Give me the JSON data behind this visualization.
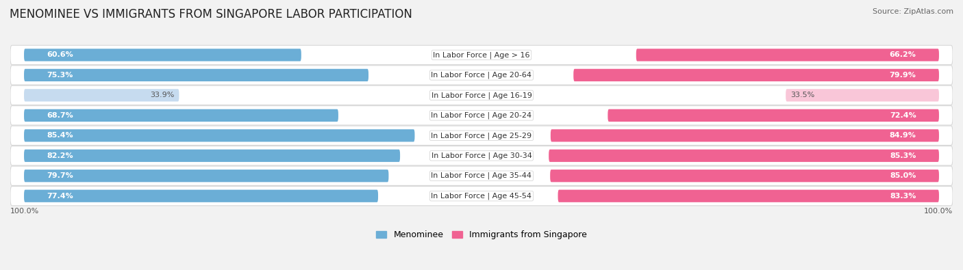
{
  "title": "MENOMINEE VS IMMIGRANTS FROM SINGAPORE LABOR PARTICIPATION",
  "source": "Source: ZipAtlas.com",
  "categories": [
    "In Labor Force | Age > 16",
    "In Labor Force | Age 20-64",
    "In Labor Force | Age 16-19",
    "In Labor Force | Age 20-24",
    "In Labor Force | Age 25-29",
    "In Labor Force | Age 30-34",
    "In Labor Force | Age 35-44",
    "In Labor Force | Age 45-54"
  ],
  "menominee_values": [
    60.6,
    75.3,
    33.9,
    68.7,
    85.4,
    82.2,
    79.7,
    77.4
  ],
  "singapore_values": [
    66.2,
    79.9,
    33.5,
    72.4,
    84.9,
    85.3,
    85.0,
    83.3
  ],
  "menominee_color": "#6baed6",
  "singapore_color": "#f06292",
  "menominee_light_color": "#c6dbef",
  "singapore_light_color": "#f9c6d8",
  "bar_height": 0.62,
  "background_color": "#f2f2f2",
  "row_bg_color": "#ffffff",
  "row_border_color": "#d8d8d8",
  "legend_labels": [
    "Menominee",
    "Immigrants from Singapore"
  ],
  "max_value": 100.0,
  "title_fontsize": 12,
  "value_fontsize": 8,
  "category_fontsize": 8,
  "source_fontsize": 8
}
